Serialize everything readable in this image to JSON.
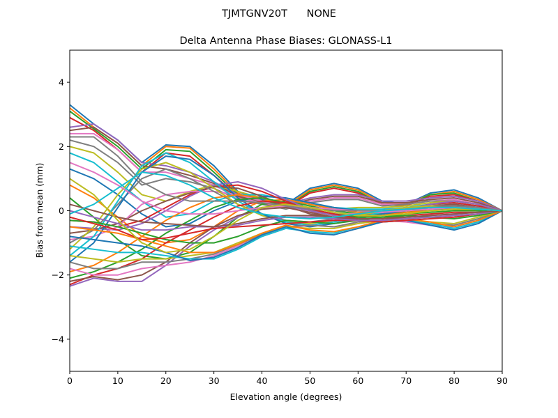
{
  "suptitle": "TJMTGNV20T      NONE",
  "chart_data": {
    "type": "line",
    "title": "Delta Antenna Phase Biases: GLONASS-L1",
    "xlabel": "Elevation angle (degrees)",
    "ylabel": "Bias from mean (mm)",
    "xlim": [
      0,
      90
    ],
    "ylim": [
      -5,
      5
    ],
    "x_ticks": [
      0,
      10,
      20,
      30,
      40,
      50,
      60,
      70,
      80,
      90
    ],
    "y_ticks": [
      -4,
      -2,
      0,
      2,
      4
    ],
    "x_tick_labels": [
      "0",
      "10",
      "20",
      "30",
      "40",
      "50",
      "60",
      "70",
      "80",
      "90"
    ],
    "y_tick_labels": [
      "−4",
      "−2",
      "0",
      "2",
      "4"
    ],
    "grid": false,
    "x": [
      0,
      5,
      10,
      15,
      20,
      25,
      30,
      35,
      40,
      45,
      50,
      55,
      60,
      65,
      70,
      75,
      80,
      85,
      90
    ],
    "color_cycle": [
      "#1f77b4",
      "#ff7f0e",
      "#2ca02c",
      "#d62728",
      "#9467bd",
      "#8c564b",
      "#e377c2",
      "#7f7f7f",
      "#bcbd22",
      "#17becf"
    ],
    "series": [
      {
        "values": [
          3.3,
          2.7,
          2.2,
          1.5,
          2.05,
          2.0,
          1.4,
          0.6,
          0.35,
          0.2,
          0.7,
          0.85,
          0.7,
          0.3,
          0.2,
          0.55,
          0.65,
          0.4,
          0.0
        ]
      },
      {
        "values": [
          3.2,
          2.6,
          2.1,
          1.4,
          2.0,
          1.95,
          1.3,
          0.55,
          0.3,
          0.15,
          0.65,
          0.8,
          0.65,
          0.25,
          0.2,
          0.5,
          0.6,
          0.35,
          0.0
        ]
      },
      {
        "values": [
          3.1,
          2.55,
          2.0,
          1.3,
          1.9,
          1.85,
          1.2,
          0.5,
          0.25,
          0.1,
          0.6,
          0.75,
          0.6,
          0.2,
          0.15,
          0.5,
          0.55,
          0.3,
          0.0
        ]
      },
      {
        "values": [
          2.9,
          2.5,
          1.9,
          1.2,
          1.8,
          1.7,
          1.1,
          0.45,
          0.2,
          0.1,
          0.55,
          0.7,
          0.55,
          0.2,
          0.15,
          0.45,
          0.5,
          0.3,
          0.0
        ]
      },
      {
        "values": [
          2.6,
          2.7,
          2.2,
          1.5,
          1.4,
          1.2,
          0.9,
          0.5,
          0.3,
          0.2,
          0.4,
          0.5,
          0.5,
          0.3,
          0.3,
          0.4,
          0.45,
          0.3,
          0.0
        ]
      },
      {
        "values": [
          2.5,
          2.6,
          2.1,
          1.4,
          1.3,
          1.1,
          0.85,
          0.45,
          0.3,
          0.15,
          0.35,
          0.45,
          0.45,
          0.25,
          0.25,
          0.35,
          0.4,
          0.25,
          0.0
        ]
      },
      {
        "values": [
          2.4,
          2.4,
          1.9,
          1.2,
          1.2,
          1.0,
          0.8,
          0.4,
          0.25,
          0.1,
          0.3,
          0.4,
          0.4,
          0.2,
          0.2,
          0.3,
          0.35,
          0.2,
          0.0
        ]
      },
      {
        "values": [
          2.2,
          2.0,
          1.5,
          0.8,
          1.0,
          0.9,
          0.7,
          0.35,
          0.2,
          0.05,
          0.25,
          0.35,
          0.35,
          0.15,
          0.2,
          0.3,
          0.3,
          0.2,
          0.0
        ]
      },
      {
        "values": [
          2.0,
          1.8,
          1.2,
          0.5,
          0.3,
          0.6,
          0.8,
          0.6,
          0.4,
          0.2,
          0.1,
          0.05,
          0.1,
          0.1,
          0.15,
          0.25,
          0.3,
          0.2,
          0.0
        ]
      },
      {
        "values": [
          1.8,
          1.5,
          0.9,
          0.3,
          -0.2,
          -0.1,
          0.3,
          0.5,
          0.5,
          0.35,
          0.2,
          0.1,
          0.05,
          0.05,
          0.1,
          0.2,
          0.25,
          0.15,
          0.0
        ]
      },
      {
        "values": [
          1.3,
          1.0,
          0.5,
          -0.1,
          -0.5,
          -0.4,
          0.0,
          0.3,
          0.45,
          0.4,
          0.25,
          0.1,
          0.0,
          0.0,
          0.05,
          0.15,
          0.2,
          0.1,
          0.0
        ]
      },
      {
        "values": [
          0.8,
          0.4,
          -0.2,
          -0.8,
          -1.0,
          -0.9,
          -0.5,
          0.0,
          0.3,
          0.35,
          0.2,
          0.05,
          -0.05,
          -0.05,
          0.0,
          0.1,
          0.15,
          0.1,
          0.0
        ]
      },
      {
        "values": [
          0.4,
          -0.2,
          -0.9,
          -1.4,
          -1.5,
          -1.3,
          -0.8,
          -0.2,
          0.2,
          0.3,
          0.15,
          0.0,
          -0.1,
          -0.1,
          -0.05,
          0.05,
          0.1,
          0.05,
          0.0
        ]
      },
      {
        "values": [
          -0.3,
          -0.35,
          -0.5,
          -0.3,
          0.1,
          0.5,
          0.75,
          0.8,
          0.6,
          0.3,
          0.0,
          -0.15,
          -0.15,
          -0.05,
          0.05,
          0.2,
          0.25,
          0.15,
          0.0
        ]
      },
      {
        "values": [
          -0.5,
          -0.55,
          -0.6,
          -0.4,
          0.0,
          0.45,
          0.8,
          0.9,
          0.7,
          0.35,
          0.05,
          -0.15,
          -0.2,
          -0.1,
          0.05,
          0.2,
          0.3,
          0.2,
          0.0
        ]
      },
      {
        "values": [
          -0.7,
          -0.6,
          -0.4,
          0.0,
          0.3,
          0.55,
          0.75,
          0.7,
          0.45,
          0.15,
          -0.1,
          -0.2,
          -0.2,
          -0.1,
          0.0,
          0.15,
          0.2,
          0.1,
          0.0
        ]
      },
      {
        "values": [
          -0.9,
          -0.8,
          -0.5,
          0.2,
          0.5,
          0.6,
          0.6,
          0.5,
          0.3,
          0.1,
          -0.05,
          -0.1,
          -0.1,
          -0.05,
          0.05,
          0.1,
          0.15,
          0.1,
          0.0
        ]
      },
      {
        "values": [
          -1.0,
          -0.6,
          0.2,
          1.0,
          1.3,
          1.0,
          0.6,
          0.2,
          -0.1,
          -0.3,
          -0.35,
          -0.25,
          -0.1,
          0.0,
          0.1,
          0.15,
          0.15,
          0.1,
          0.0
        ]
      },
      {
        "values": [
          -1.2,
          -0.5,
          0.5,
          1.3,
          1.5,
          1.2,
          0.7,
          0.2,
          -0.15,
          -0.35,
          -0.4,
          -0.3,
          -0.15,
          0.0,
          0.1,
          0.15,
          0.1,
          0.05,
          0.0
        ]
      },
      {
        "values": [
          -1.4,
          -0.8,
          0.3,
          1.4,
          1.8,
          1.5,
          0.9,
          0.3,
          -0.1,
          -0.35,
          -0.45,
          -0.35,
          -0.2,
          -0.05,
          0.05,
          0.1,
          0.1,
          0.05,
          0.0
        ]
      },
      {
        "values": [
          -1.6,
          -1.0,
          0.1,
          1.2,
          1.7,
          1.6,
          1.1,
          0.4,
          -0.1,
          -0.4,
          -0.5,
          -0.4,
          -0.25,
          -0.1,
          0.0,
          0.05,
          0.05,
          0.0,
          0.0
        ]
      },
      {
        "values": [
          -1.9,
          -1.7,
          -1.3,
          -0.8,
          -0.3,
          0.1,
          0.4,
          0.5,
          0.4,
          0.2,
          0.0,
          -0.15,
          -0.2,
          -0.15,
          -0.05,
          0.0,
          0.05,
          0.0,
          0.0
        ]
      },
      {
        "values": [
          -2.1,
          -1.9,
          -1.6,
          -1.2,
          -0.7,
          -0.3,
          0.1,
          0.35,
          0.4,
          0.25,
          0.05,
          -0.1,
          -0.2,
          -0.2,
          -0.1,
          -0.05,
          0.0,
          0.0,
          0.0
        ]
      },
      {
        "values": [
          -2.3,
          -2.0,
          -1.8,
          -1.5,
          -1.0,
          -0.6,
          -0.2,
          0.15,
          0.3,
          0.25,
          0.05,
          -0.1,
          -0.25,
          -0.25,
          -0.15,
          -0.1,
          -0.05,
          -0.05,
          0.0
        ]
      },
      {
        "values": [
          -2.35,
          -2.1,
          -2.2,
          -2.2,
          -1.7,
          -1.1,
          -0.6,
          -0.2,
          0.1,
          0.15,
          0.0,
          -0.15,
          -0.3,
          -0.3,
          -0.2,
          -0.15,
          -0.1,
          -0.05,
          0.0
        ]
      },
      {
        "values": [
          -2.2,
          -2.05,
          -2.15,
          -2.0,
          -1.6,
          -1.0,
          -0.5,
          -0.15,
          0.05,
          0.1,
          -0.05,
          -0.2,
          -0.3,
          -0.3,
          -0.25,
          -0.2,
          -0.15,
          -0.1,
          0.0
        ]
      },
      {
        "values": [
          -1.8,
          -2.0,
          -2.0,
          -1.8,
          -1.7,
          -1.6,
          -1.4,
          -1.1,
          -0.8,
          -0.55,
          -0.45,
          -0.5,
          -0.4,
          -0.3,
          -0.35,
          -0.45,
          -0.5,
          -0.3,
          0.0
        ]
      },
      {
        "values": [
          -1.6,
          -1.8,
          -1.8,
          -1.6,
          -1.6,
          -1.5,
          -1.35,
          -1.05,
          -0.75,
          -0.5,
          -0.45,
          -0.5,
          -0.35,
          -0.3,
          -0.3,
          -0.4,
          -0.45,
          -0.25,
          0.0
        ]
      },
      {
        "values": [
          -1.4,
          -1.5,
          -1.6,
          -1.5,
          -1.5,
          -1.4,
          -1.3,
          -1.0,
          -0.7,
          -0.5,
          -0.55,
          -0.55,
          -0.4,
          -0.3,
          -0.3,
          -0.35,
          -0.4,
          -0.2,
          0.0
        ]
      },
      {
        "values": [
          -1.1,
          -1.2,
          -1.3,
          -1.3,
          -1.4,
          -1.5,
          -1.5,
          -1.2,
          -0.8,
          -0.55,
          -0.65,
          -0.7,
          -0.5,
          -0.35,
          -0.3,
          -0.4,
          -0.55,
          -0.35,
          0.0
        ]
      },
      {
        "values": [
          -0.8,
          -0.9,
          -1.0,
          -1.1,
          -1.3,
          -1.55,
          -1.45,
          -1.15,
          -0.75,
          -0.5,
          -0.7,
          -0.75,
          -0.55,
          -0.35,
          -0.3,
          -0.45,
          -0.6,
          -0.4,
          0.0
        ]
      },
      {
        "values": [
          -0.5,
          -0.6,
          -0.7,
          -0.9,
          -1.1,
          -1.3,
          -1.3,
          -1.05,
          -0.7,
          -0.45,
          -0.6,
          -0.65,
          -0.5,
          -0.3,
          -0.25,
          -0.35,
          -0.5,
          -0.3,
          0.0
        ]
      },
      {
        "values": [
          -0.3,
          -0.35,
          -0.5,
          -0.7,
          -0.9,
          -1.0,
          -1.0,
          -0.8,
          -0.5,
          -0.3,
          -0.35,
          -0.4,
          -0.3,
          -0.2,
          -0.15,
          -0.2,
          -0.25,
          -0.15,
          0.0
        ]
      },
      {
        "values": [
          -0.2,
          -0.4,
          -0.6,
          -0.9,
          -0.85,
          -0.7,
          -0.55,
          -0.5,
          -0.45,
          -0.4,
          -0.35,
          -0.3,
          -0.3,
          -0.35,
          -0.3,
          -0.25,
          -0.2,
          -0.1,
          0.0
        ]
      },
      {
        "values": [
          0.0,
          -0.2,
          -0.4,
          -0.6,
          -0.6,
          -0.5,
          -0.5,
          -0.45,
          -0.3,
          -0.2,
          -0.2,
          -0.25,
          -0.3,
          -0.3,
          -0.25,
          -0.2,
          -0.15,
          -0.1,
          0.0
        ]
      },
      {
        "values": [
          0.2,
          0.0,
          -0.2,
          -0.35,
          -0.4,
          -0.45,
          -0.5,
          -0.4,
          -0.25,
          -0.15,
          -0.15,
          -0.2,
          -0.25,
          -0.25,
          -0.2,
          -0.15,
          -0.1,
          -0.05,
          0.0
        ]
      },
      {
        "values": [
          1.5,
          1.2,
          0.8,
          0.3,
          0.0,
          -0.1,
          -0.1,
          0.0,
          0.1,
          0.15,
          0.1,
          0.05,
          0.0,
          -0.05,
          0.0,
          0.05,
          0.1,
          0.05,
          0.0
        ]
      },
      {
        "values": [
          2.3,
          2.3,
          1.7,
          0.9,
          0.5,
          0.3,
          0.3,
          0.3,
          0.25,
          0.15,
          0.05,
          0.0,
          0.0,
          0.0,
          0.05,
          0.1,
          0.15,
          0.1,
          0.0
        ]
      },
      {
        "values": [
          1.0,
          0.5,
          -0.3,
          -1.0,
          -1.3,
          -1.2,
          -0.8,
          -0.3,
          0.1,
          0.2,
          0.1,
          -0.05,
          -0.15,
          -0.15,
          -0.1,
          0.0,
          0.05,
          0.05,
          0.0
        ]
      },
      {
        "values": [
          -0.1,
          0.2,
          0.7,
          1.2,
          1.1,
          0.8,
          0.4,
          0.1,
          -0.1,
          -0.2,
          -0.25,
          -0.2,
          -0.1,
          0.0,
          0.05,
          0.1,
          0.1,
          0.05,
          0.0
        ]
      }
    ]
  }
}
